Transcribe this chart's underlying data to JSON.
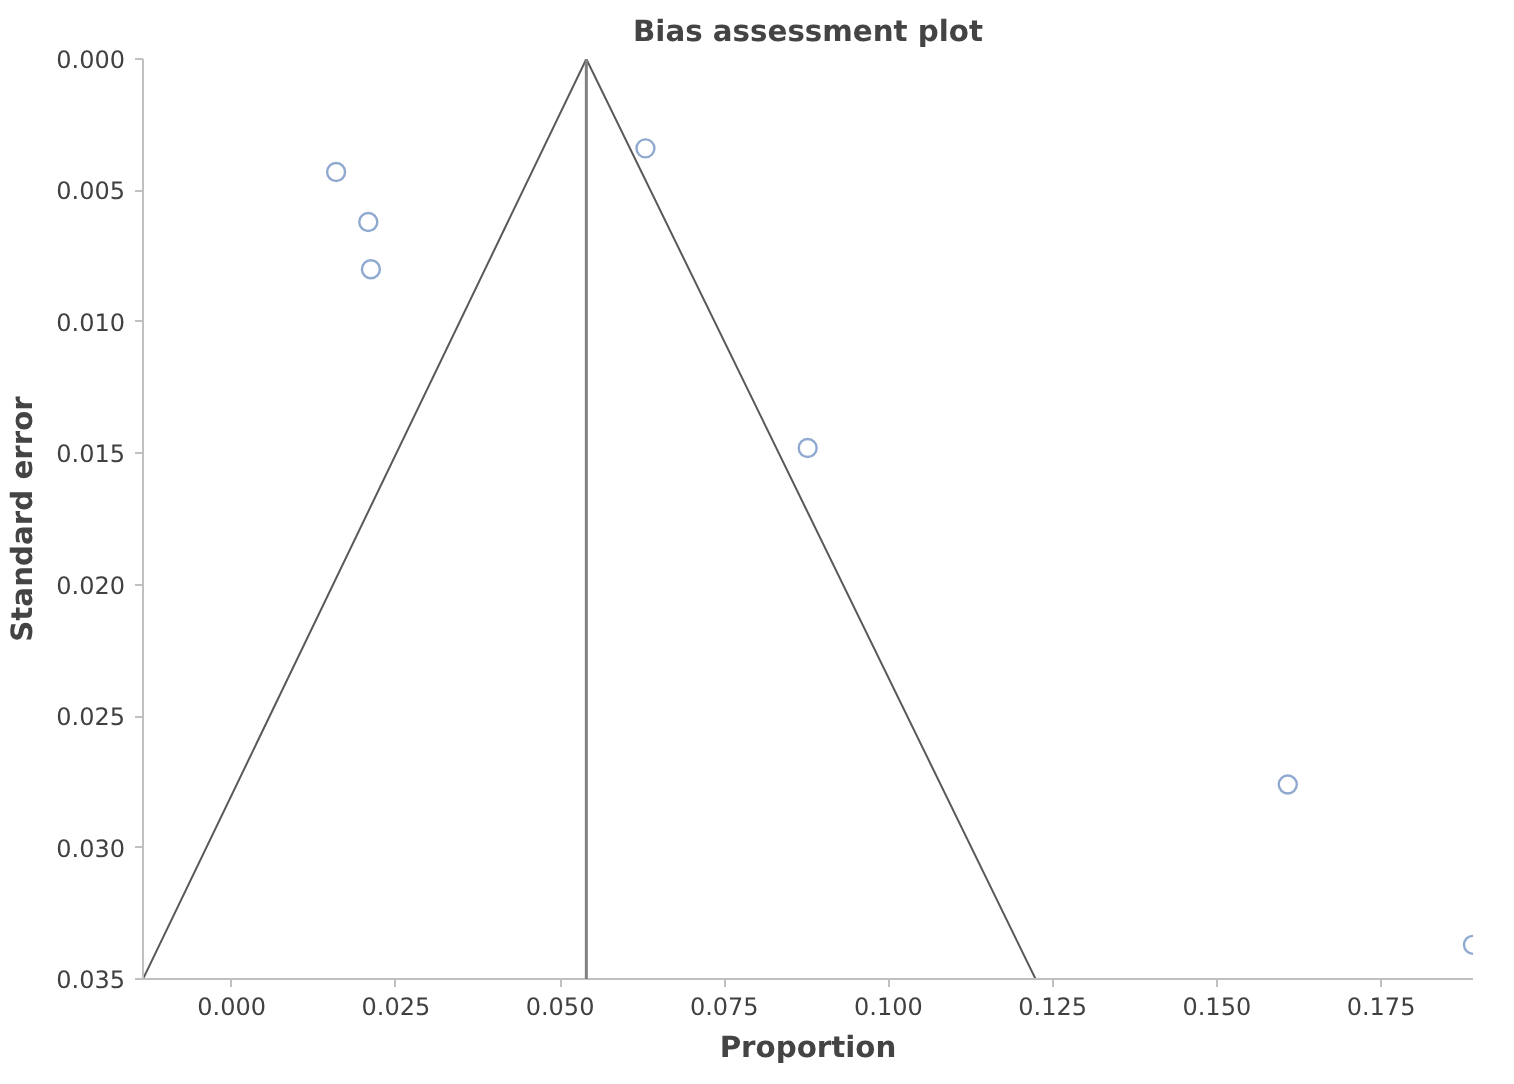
{
  "chart_data": {
    "type": "scatter",
    "title": "Bias assessment plot",
    "xlabel": "Proportion",
    "ylabel": "Standard error",
    "series": [
      {
        "color": "#8fa9cf",
        "x": [
          0.0159,
          0.0208,
          0.0212,
          0.063,
          0.0877,
          0.1608,
          0.189
        ],
        "values": [
          0.0043,
          0.0062,
          0.008,
          0.0034,
          0.0148,
          0.0276,
          0.0337
        ]
      },
      {
        "type": "line",
        "marker": "none",
        "color": "#595959",
        "x": [
          -0.0135,
          0.054,
          0.1224
        ],
        "values": [
          0.035,
          0,
          0.035
        ]
      }
    ],
    "ref_lines": [
      {
        "axis": "x",
        "value": 0.054,
        "label": null,
        "color": "#808080"
      }
    ],
    "marker": "circle",
    "grid": false,
    "xlim": [
      -0.0135,
      0.189
    ],
    "ylim": [
      0.035,
      0
    ],
    "xticks": [
      {
        "value": 0,
        "label": "0.000"
      },
      {
        "value": 0.025,
        "label": "0.025"
      },
      {
        "value": 0.05,
        "label": "0.050"
      },
      {
        "value": 0.075,
        "label": "0.075"
      },
      {
        "value": 0.1,
        "label": "0.100"
      },
      {
        "value": 0.125,
        "label": "0.125"
      },
      {
        "value": 0.15,
        "label": "0.150"
      },
      {
        "value": 0.175,
        "label": "0.175"
      }
    ],
    "yticks": [
      {
        "value": 0,
        "label": "0.000"
      },
      {
        "value": 0.005,
        "label": "0.005"
      },
      {
        "value": 0.01,
        "label": "0.010"
      },
      {
        "value": 0.015,
        "label": "0.015"
      },
      {
        "value": 0.02,
        "label": "0.020"
      },
      {
        "value": 0.025,
        "label": "0.025"
      },
      {
        "value": 0.03,
        "label": "0.030"
      },
      {
        "value": 0.035,
        "label": "0.035"
      }
    ]
  }
}
